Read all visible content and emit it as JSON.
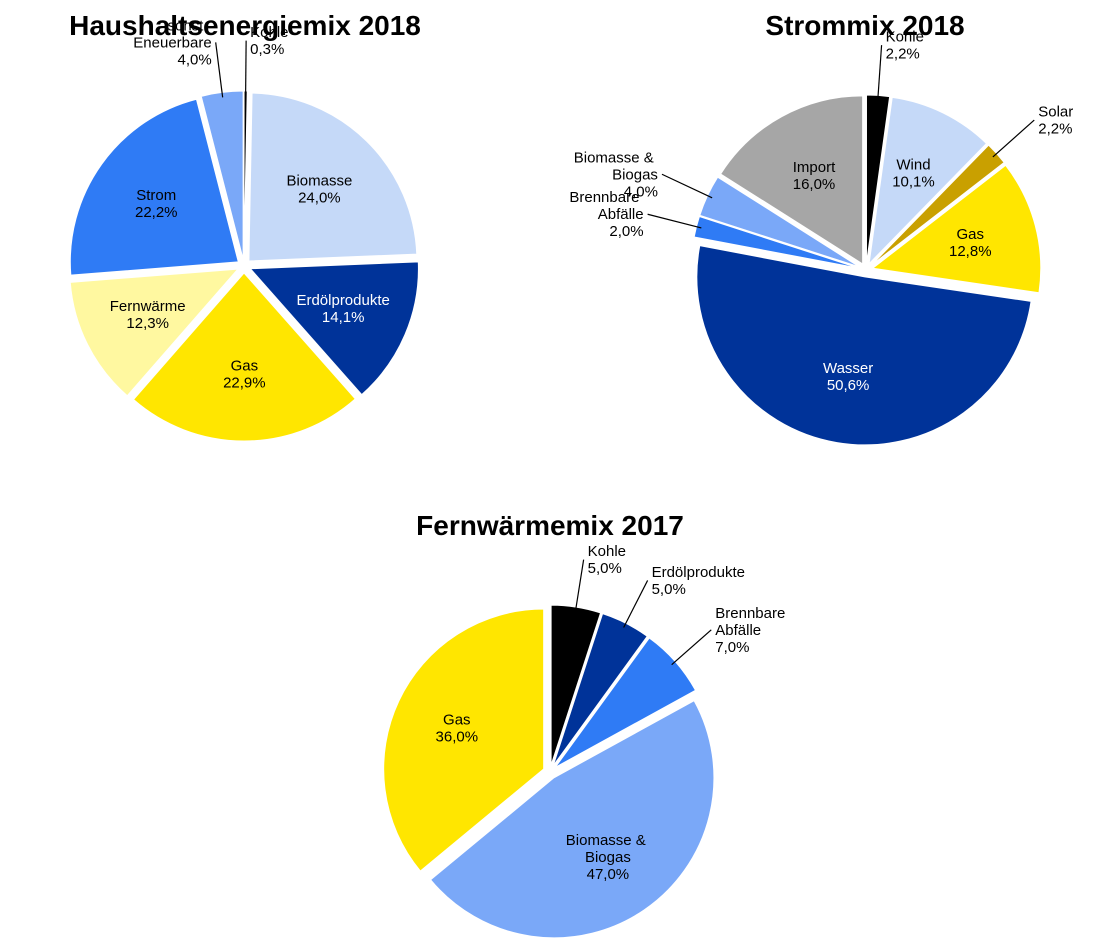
{
  "chart_data": [
    {
      "type": "pie",
      "title": "Haushaltsenergiemix 2018",
      "categories": [
        "Kohle",
        "Biomasse",
        "Erdölprodukte",
        "Gas",
        "Fernwärme",
        "Strom",
        "sonst.\nEneuerbare"
      ],
      "values": [
        0.3,
        24.0,
        14.1,
        22.9,
        12.3,
        22.2,
        4.0
      ],
      "value_labels": [
        "0,3%",
        "24,0%",
        "14,1%",
        "22,9%",
        "12,3%",
        "22,2%",
        "4,0%"
      ],
      "colors": [
        "#000000",
        "#c5d9f8",
        "#003399",
        "#ffe600",
        "#fff8a0",
        "#2f7bf5",
        "#7aa8f8"
      ]
    },
    {
      "type": "pie",
      "title": "Strommix 2018",
      "categories": [
        "Kohle",
        "Wind",
        "Solar",
        "Gas",
        "Wasser",
        "Brennbare\nAbfälle",
        "Biomasse &\nBiogas",
        "Import"
      ],
      "values": [
        2.2,
        10.1,
        2.2,
        12.8,
        50.6,
        2.0,
        4.0,
        16.0
      ],
      "value_labels": [
        "2,2%",
        "10,1%",
        "2,2%",
        "12,8%",
        "50,6%",
        "2,0%",
        "4,0%",
        "16,0%"
      ],
      "colors": [
        "#000000",
        "#c5d9f8",
        "#c9a000",
        "#ffe600",
        "#003399",
        "#2f7bf5",
        "#7aa8f8",
        "#a6a6a6"
      ]
    },
    {
      "type": "pie",
      "title": "Fernwärmemix 2017",
      "categories": [
        "Kohle",
        "Erdölprodukte",
        "Brennbare\nAbfälle",
        "Biomasse &\nBiogas",
        "Gas"
      ],
      "values": [
        5.0,
        5.0,
        7.0,
        47.0,
        36.0
      ],
      "value_labels": [
        "5,0%",
        "5,0%",
        "7,0%",
        "47,0%",
        "36,0%"
      ],
      "colors": [
        "#000000",
        "#003399",
        "#2f7bf5",
        "#7aa8f8",
        "#ffe600"
      ]
    }
  ]
}
